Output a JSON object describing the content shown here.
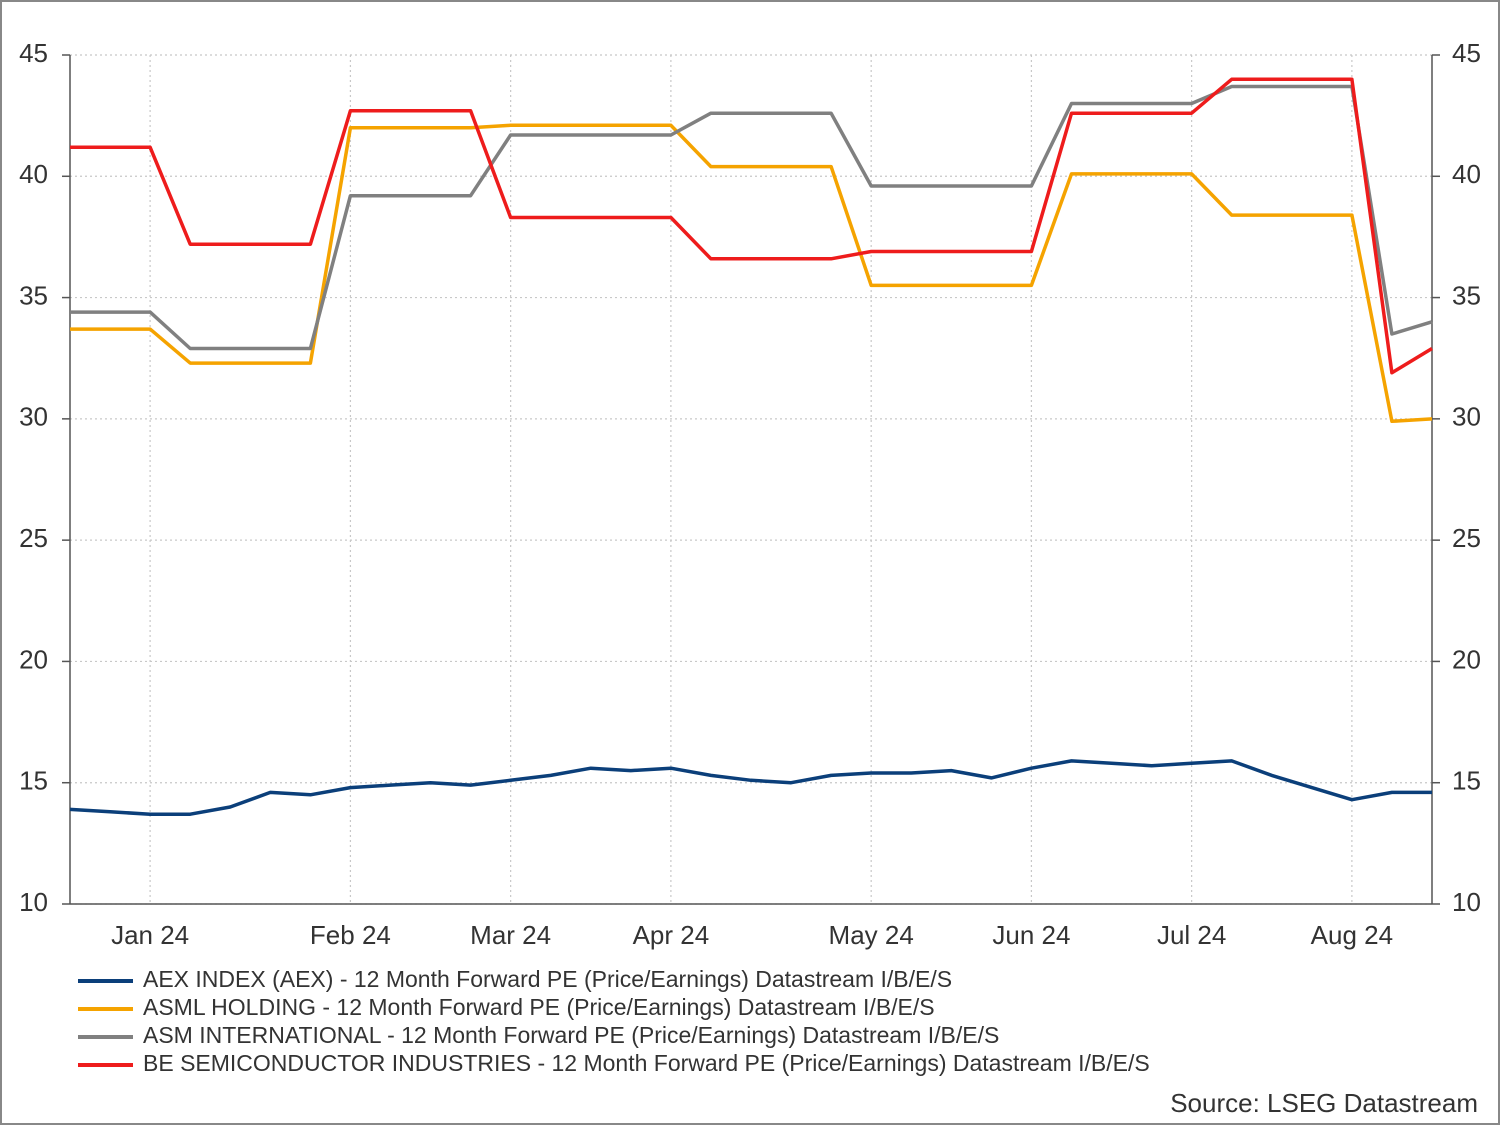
{
  "chart_data": {
    "type": "line",
    "categories": [
      null,
      null,
      "Jan 24",
      null,
      null,
      null,
      null,
      "Feb 24",
      null,
      null,
      null,
      "Mar 24",
      null,
      null,
      null,
      "Apr 24",
      null,
      null,
      null,
      null,
      "May 24",
      null,
      null,
      null,
      "Jun 24",
      null,
      null,
      null,
      "Jul 24",
      null,
      null,
      null,
      "Aug 24",
      null,
      null
    ],
    "series": [
      {
        "name": "AEX INDEX (AEX) - 12 Month Forward PE (Price/Earnings) Datastream I/B/E/S",
        "color": "#0b3f7a",
        "values": [
          13.9,
          13.8,
          13.7,
          13.7,
          14.0,
          14.6,
          14.5,
          14.8,
          14.9,
          15.0,
          14.9,
          15.1,
          15.3,
          15.6,
          15.5,
          15.6,
          15.3,
          15.1,
          15.0,
          15.3,
          15.4,
          15.4,
          15.5,
          15.2,
          15.6,
          15.9,
          15.8,
          15.7,
          15.8,
          15.9,
          15.3,
          14.8,
          14.3,
          14.6,
          14.6
        ]
      },
      {
        "name": "ASML HOLDING - 12 Month Forward PE (Price/Earnings) Datastream I/B/E/S",
        "color": "#f5a300",
        "values": [
          33.7,
          33.7,
          33.7,
          32.3,
          32.3,
          32.3,
          32.3,
          42.0,
          42.0,
          42.0,
          42.0,
          42.1,
          42.1,
          42.1,
          42.1,
          42.1,
          40.4,
          40.4,
          40.4,
          40.4,
          35.5,
          35.5,
          35.5,
          35.5,
          35.5,
          40.1,
          40.1,
          40.1,
          40.1,
          38.4,
          38.4,
          38.4,
          38.4,
          29.9,
          30.0
        ]
      },
      {
        "name": "ASM INTERNATIONAL - 12 Month Forward PE (Price/Earnings) Datastream I/B/E/S",
        "color": "#808080",
        "values": [
          34.4,
          34.4,
          34.4,
          32.9,
          32.9,
          32.9,
          32.9,
          39.2,
          39.2,
          39.2,
          39.2,
          41.7,
          41.7,
          41.7,
          41.7,
          41.7,
          42.6,
          42.6,
          42.6,
          42.6,
          39.6,
          39.6,
          39.6,
          39.6,
          39.6,
          43.0,
          43.0,
          43.0,
          43.0,
          43.7,
          43.7,
          43.7,
          43.7,
          33.5,
          34.0
        ]
      },
      {
        "name": "BE SEMICONDUCTOR INDUSTRIES - 12 Month Forward PE (Price/Earnings) Datastream I/B/E/S",
        "color": "#ee1c1c",
        "values": [
          41.2,
          41.2,
          41.2,
          37.2,
          37.2,
          37.2,
          37.2,
          42.7,
          42.7,
          42.7,
          42.7,
          38.3,
          38.3,
          38.3,
          38.3,
          38.3,
          36.6,
          36.6,
          36.6,
          36.6,
          36.9,
          36.9,
          36.9,
          36.9,
          36.9,
          42.6,
          42.6,
          42.6,
          42.6,
          44.0,
          44.0,
          44.0,
          44.0,
          31.9,
          32.9
        ]
      }
    ],
    "ylim": [
      10,
      45
    ],
    "yticks": [
      10,
      15,
      20,
      25,
      30,
      35,
      40,
      45
    ],
    "grid": true,
    "source": "Source: LSEG Datastream"
  }
}
